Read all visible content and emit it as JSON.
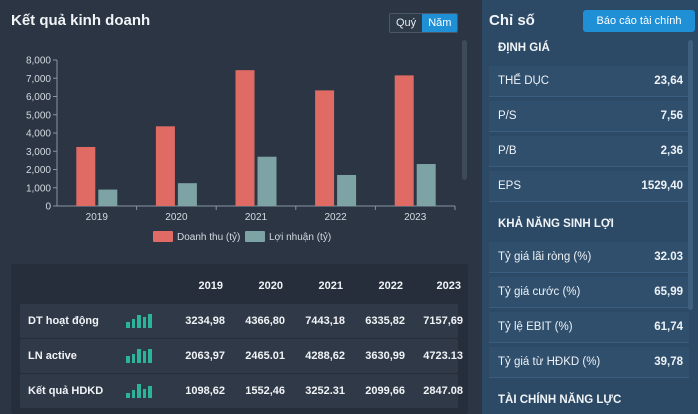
{
  "left_panel": {
    "title": "Kết quả kinh doanh",
    "toggle": {
      "quarter": "Quý",
      "year": "Năm",
      "active": "year"
    }
  },
  "chart_data": {
    "type": "bar",
    "categories": [
      "2019",
      "2020",
      "2021",
      "2022",
      "2023"
    ],
    "series": [
      {
        "name": "Doanh thu (tỷ)",
        "color": "#e06a64",
        "values": [
          3234.98,
          4366.8,
          7443.18,
          6335.82,
          7157.69
        ]
      },
      {
        "name": "Lợi nhuận (tỷ)",
        "color": "#7ea3a4",
        "values": [
          900,
          1250,
          2700,
          1700,
          2300
        ]
      }
    ],
    "y_ticks": [
      "0",
      "1,000",
      "2,000",
      "3,000",
      "4,000",
      "5,000",
      "6,000",
      "7,000",
      "8,000"
    ],
    "ylim": [
      0,
      8000
    ],
    "grid": false,
    "legend": "bottom"
  },
  "table": {
    "headers": [
      "2019",
      "2020",
      "2021",
      "2022",
      "2023"
    ],
    "rows": [
      {
        "label": "DT hoạt động",
        "spark": [
          6,
          9,
          13,
          11,
          14
        ],
        "values": [
          "3234,98",
          "4366,80",
          "7443,18",
          "6335,82",
          "7157,69"
        ]
      },
      {
        "label": "LN active",
        "spark": [
          7,
          9,
          14,
          12,
          14
        ],
        "values": [
          "2063,97",
          "2465.01",
          "4288,62",
          "3630,99",
          "4723.13"
        ]
      },
      {
        "label": "Kết quả HDKD",
        "spark": [
          5,
          8,
          14,
          9,
          12
        ],
        "values": [
          "1098,62",
          "1552,46",
          "3252.31",
          "2099,66",
          "2847.08"
        ]
      }
    ]
  },
  "right_panel": {
    "title": "Chỉ số",
    "report_button": "Báo cáo tài chính",
    "sections": [
      {
        "title": "ĐỊNH GIÁ",
        "items": [
          {
            "label": "THỂ DỤC",
            "value": "23,64"
          },
          {
            "label": "P/S",
            "value": "7,56"
          },
          {
            "label": "P/B",
            "value": "2,36"
          },
          {
            "label": "EPS",
            "value": "1529,40"
          }
        ]
      },
      {
        "title": "KHẢ NĂNG SINH LỢI",
        "items": [
          {
            "label": "Tỷ giá lãi ròng (%)",
            "value": "32.03"
          },
          {
            "label": "Tỷ giá cước (%)",
            "value": "65,99"
          },
          {
            "label": "Tỷ lệ EBIT (%)",
            "value": "61,74"
          },
          {
            "label": "Tỷ giá từ HĐKD (%)",
            "value": "39,78"
          }
        ]
      },
      {
        "title": "TÀI CHÍNH NĂNG LỰC",
        "items": []
      }
    ]
  }
}
